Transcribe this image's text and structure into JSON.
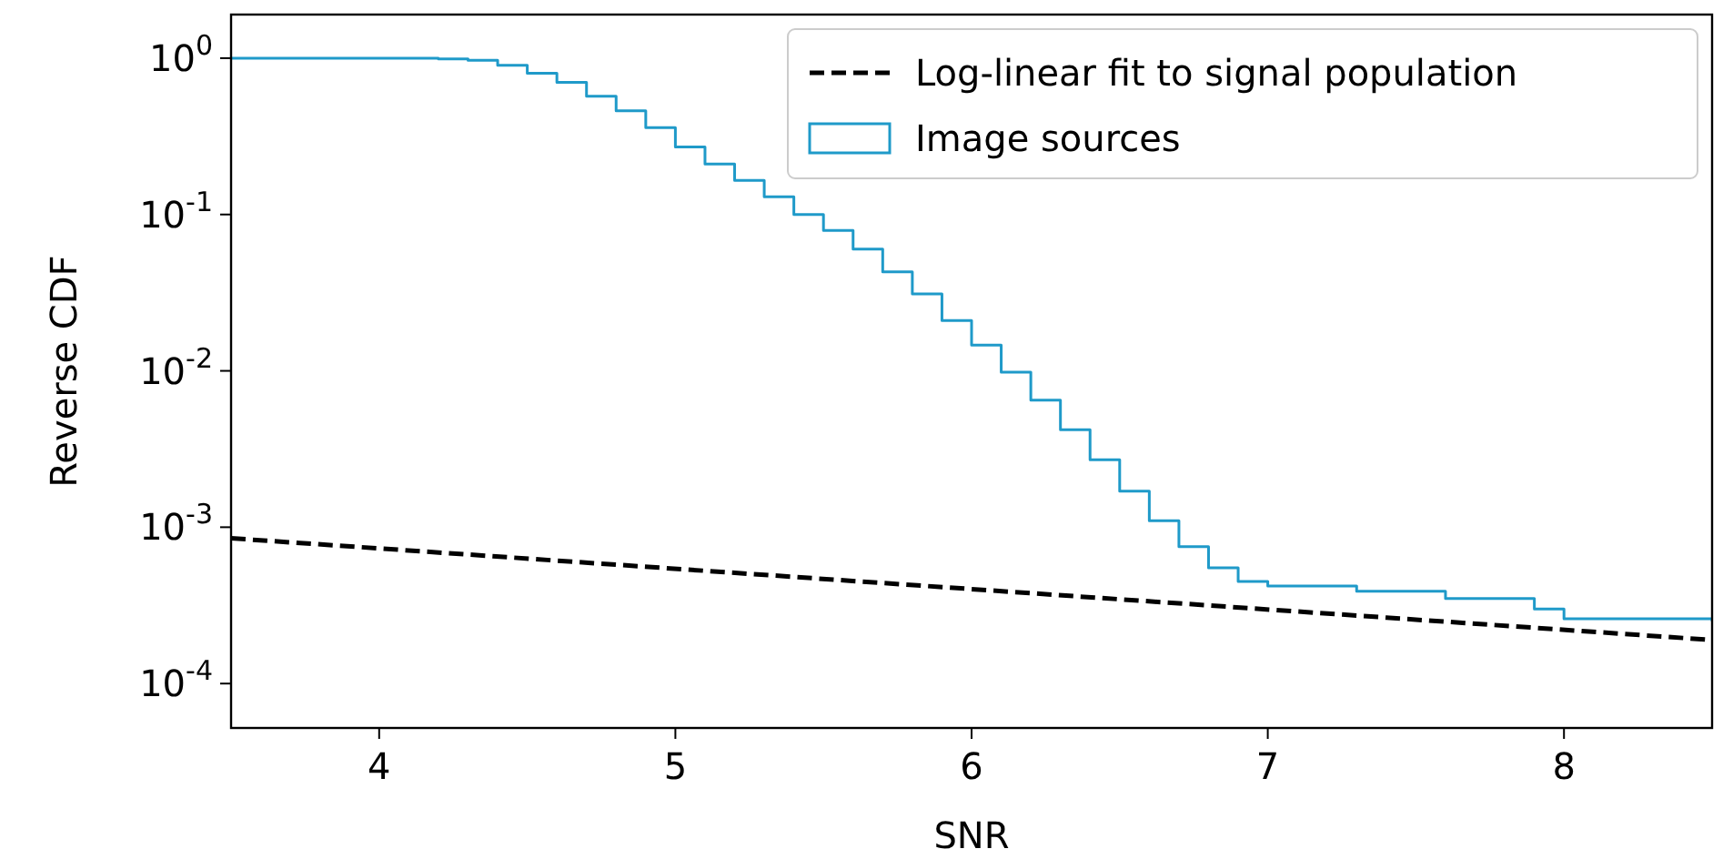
{
  "chart_data": {
    "type": "step",
    "xlabel": "SNR",
    "ylabel": "Reverse CDF",
    "log": "y",
    "grid": false,
    "legend": "top right",
    "xlim": [
      3.5,
      8.5
    ],
    "xticks": [
      4,
      5,
      6,
      7,
      8
    ],
    "ylim": [
      5.2e-05,
      1.9
    ],
    "yticks": [
      {
        "value": 1,
        "label": "10$^{0}$"
      },
      {
        "value": 0.1,
        "label": "10$^{-1}$"
      },
      {
        "value": 0.01,
        "label": "10$^{-2}$"
      },
      {
        "value": 0.001,
        "label": "10$^{-3}$"
      },
      {
        "value": 0.0001,
        "label": "10$^{-4}$"
      }
    ],
    "series": [
      {
        "name": "Log-linear fit to signal population",
        "type": "line",
        "line_style": "dashed",
        "color": "#000000",
        "x": [
          3.5,
          8.5
        ],
        "values": [
          0.00085,
          0.00019
        ]
      },
      {
        "name": "Image sources",
        "color": "#1f9ac9",
        "x": [
          3.5,
          4.0,
          4.2,
          4.3,
          4.4,
          4.5,
          4.6,
          4.7,
          4.8,
          4.9,
          5.0,
          5.1,
          5.2,
          5.3,
          5.4,
          5.5,
          5.6,
          5.7,
          5.8,
          5.9,
          6.0,
          6.1,
          6.2,
          6.3,
          6.4,
          6.5,
          6.6,
          6.7,
          6.8,
          6.9,
          7.0,
          7.3,
          7.6,
          7.9,
          8.0,
          8.5
        ],
        "values": [
          1.0,
          1.0,
          0.99,
          0.97,
          0.9,
          0.8,
          0.7,
          0.57,
          0.46,
          0.36,
          0.27,
          0.21,
          0.165,
          0.13,
          0.1,
          0.079,
          0.06,
          0.043,
          0.031,
          0.021,
          0.0146,
          0.0098,
          0.0065,
          0.0042,
          0.0027,
          0.0017,
          0.0011,
          0.00075,
          0.00055,
          0.00045,
          0.00042,
          0.00039,
          0.00035,
          0.0003,
          0.00026,
          0.00025
        ]
      }
    ]
  }
}
